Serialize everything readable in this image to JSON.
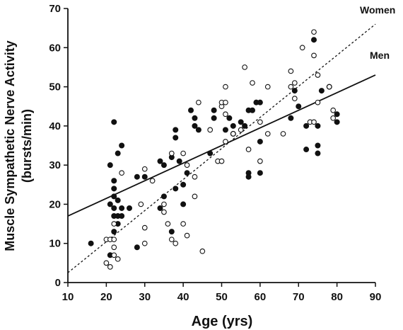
{
  "chart_data": {
    "type": "scatter",
    "xlabel": "Age (yrs)",
    "ylabel_line1": "Muscle Sympathetic Nerve Activity",
    "ylabel_line2": "(bursts/min)",
    "xlim": [
      10,
      90
    ],
    "ylim": [
      0,
      70
    ],
    "xticks": [
      "10",
      "20",
      "30",
      "40",
      "50",
      "60",
      "70",
      "80",
      "90"
    ],
    "yticks": [
      "0",
      "10",
      "20",
      "30",
      "40",
      "50",
      "60",
      "70"
    ],
    "grid": false,
    "series": [
      {
        "name": "Men",
        "marker": "filled",
        "points": [
          [
            16,
            10
          ],
          [
            21,
            7
          ],
          [
            21,
            20
          ],
          [
            21,
            30
          ],
          [
            22,
            41
          ],
          [
            22,
            26
          ],
          [
            22,
            24
          ],
          [
            22,
            22
          ],
          [
            22,
            19
          ],
          [
            22,
            17
          ],
          [
            22,
            13
          ],
          [
            23,
            21
          ],
          [
            23,
            17
          ],
          [
            23,
            15
          ],
          [
            23,
            33
          ],
          [
            24,
            35
          ],
          [
            24,
            19
          ],
          [
            24,
            17
          ],
          [
            26,
            19
          ],
          [
            28,
            9
          ],
          [
            28,
            27
          ],
          [
            30,
            27
          ],
          [
            34,
            31
          ],
          [
            34,
            19
          ],
          [
            35,
            30
          ],
          [
            35,
            22
          ],
          [
            37,
            13
          ],
          [
            37,
            32
          ],
          [
            38,
            39
          ],
          [
            38,
            37
          ],
          [
            38,
            24
          ],
          [
            39,
            31
          ],
          [
            40,
            25
          ],
          [
            40,
            20
          ],
          [
            41,
            28
          ],
          [
            42,
            44
          ],
          [
            43,
            42
          ],
          [
            43,
            40
          ],
          [
            44,
            39
          ],
          [
            47,
            33
          ],
          [
            48,
            44
          ],
          [
            48,
            42
          ],
          [
            51,
            39
          ],
          [
            52,
            42
          ],
          [
            53,
            40
          ],
          [
            53,
            38
          ],
          [
            55,
            41
          ],
          [
            56,
            40
          ],
          [
            57,
            44
          ],
          [
            57,
            28
          ],
          [
            57,
            27
          ],
          [
            58,
            44
          ],
          [
            59,
            46
          ],
          [
            60,
            46
          ],
          [
            60,
            28
          ],
          [
            60,
            36
          ],
          [
            68,
            42
          ],
          [
            69,
            49
          ],
          [
            70,
            45
          ],
          [
            72,
            34
          ],
          [
            72,
            40
          ],
          [
            74,
            62
          ],
          [
            75,
            35
          ],
          [
            75,
            33
          ],
          [
            75,
            40
          ],
          [
            76,
            49
          ],
          [
            78,
            50
          ],
          [
            80,
            43
          ],
          [
            80,
            41
          ]
        ]
      },
      {
        "name": "Women",
        "marker": "open",
        "points": [
          [
            20,
            11
          ],
          [
            20,
            5
          ],
          [
            21,
            4
          ],
          [
            21,
            11
          ],
          [
            22,
            9
          ],
          [
            22,
            11
          ],
          [
            22,
            15
          ],
          [
            22,
            7
          ],
          [
            23,
            6
          ],
          [
            24,
            28
          ],
          [
            29,
            20
          ],
          [
            30,
            10
          ],
          [
            30,
            14
          ],
          [
            30,
            29
          ],
          [
            32,
            26
          ],
          [
            35,
            18
          ],
          [
            35,
            20
          ],
          [
            36,
            15
          ],
          [
            37,
            11
          ],
          [
            37,
            33
          ],
          [
            38,
            10
          ],
          [
            40,
            15
          ],
          [
            40,
            33
          ],
          [
            41,
            30
          ],
          [
            41,
            12
          ],
          [
            43,
            22
          ],
          [
            43,
            27
          ],
          [
            44,
            46
          ],
          [
            45,
            8
          ],
          [
            47,
            39
          ],
          [
            49,
            31
          ],
          [
            50,
            31
          ],
          [
            50,
            45
          ],
          [
            50,
            46
          ],
          [
            51,
            50
          ],
          [
            51,
            46
          ],
          [
            51,
            43
          ],
          [
            51,
            36
          ],
          [
            53,
            38
          ],
          [
            55,
            39
          ],
          [
            56,
            55
          ],
          [
            57,
            34
          ],
          [
            58,
            51
          ],
          [
            60,
            31
          ],
          [
            60,
            41
          ],
          [
            62,
            50
          ],
          [
            62,
            38
          ],
          [
            66,
            38
          ],
          [
            68,
            50
          ],
          [
            68,
            54
          ],
          [
            69,
            51
          ],
          [
            69,
            47
          ],
          [
            71,
            60
          ],
          [
            73,
            41
          ],
          [
            74,
            41
          ],
          [
            74,
            58
          ],
          [
            75,
            46
          ],
          [
            75,
            53
          ],
          [
            78,
            50
          ],
          [
            79,
            44
          ],
          [
            79,
            42
          ],
          [
            74,
            64
          ]
        ]
      }
    ],
    "trendlines": [
      {
        "name": "Men",
        "style": "solid",
        "from": [
          10,
          17
        ],
        "to": [
          90,
          53
        ]
      },
      {
        "name": "Women",
        "style": "dotted",
        "from": [
          10,
          2.5
        ],
        "to": [
          90,
          66
        ]
      }
    ]
  }
}
